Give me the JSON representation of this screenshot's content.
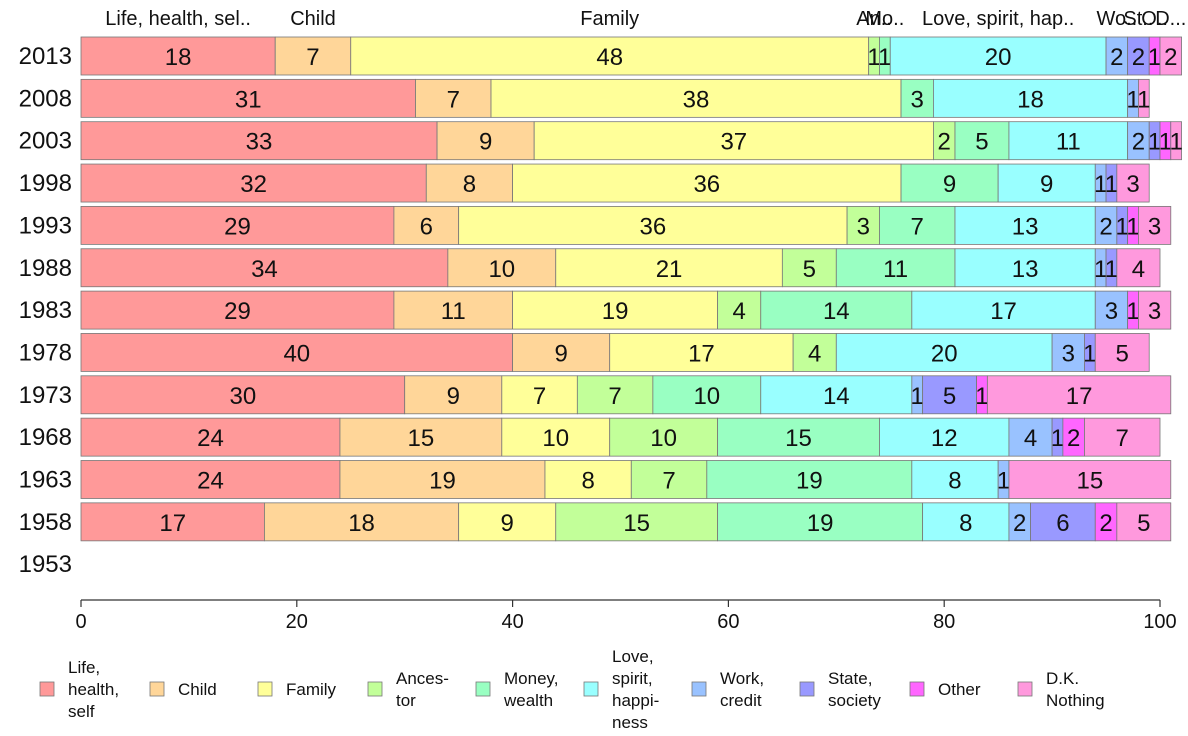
{
  "chart_data": {
    "type": "bar",
    "orientation": "horizontal",
    "stacked": true,
    "categories": [
      "2013",
      "2008",
      "2003",
      "1998",
      "1993",
      "1988",
      "1983",
      "1978",
      "1973",
      "1968",
      "1963",
      "1958",
      "1953"
    ],
    "series": [
      {
        "name": "Life, health, self",
        "color": "#ff9999",
        "values": [
          18,
          31,
          33,
          32,
          29,
          34,
          29,
          40,
          30,
          24,
          24,
          17,
          null
        ]
      },
      {
        "name": "Child",
        "color": "#ffd699",
        "values": [
          7,
          7,
          9,
          8,
          6,
          10,
          11,
          9,
          9,
          15,
          19,
          18,
          null
        ]
      },
      {
        "name": "Family",
        "color": "#ffff99",
        "values": [
          48,
          38,
          37,
          36,
          36,
          21,
          19,
          17,
          7,
          10,
          8,
          9,
          null
        ]
      },
      {
        "name": "Ancestor",
        "color": "#c2ff99",
        "values": [
          1,
          0,
          2,
          0,
          3,
          5,
          4,
          4,
          7,
          10,
          7,
          15,
          null
        ]
      },
      {
        "name": "Money, wealth",
        "color": "#99ffc2",
        "values": [
          1,
          3,
          5,
          9,
          7,
          11,
          14,
          0,
          10,
          15,
          19,
          19,
          null
        ]
      },
      {
        "name": "Love, spirit, happiness",
        "color": "#99ffff",
        "values": [
          20,
          18,
          11,
          9,
          13,
          13,
          17,
          20,
          14,
          12,
          8,
          8,
          null
        ]
      },
      {
        "name": "Work, credit",
        "color": "#99c2ff",
        "values": [
          2,
          1,
          2,
          1,
          2,
          1,
          3,
          3,
          1,
          4,
          1,
          2,
          null
        ]
      },
      {
        "name": "State, society",
        "color": "#9999ff",
        "values": [
          2,
          0,
          1,
          1,
          1,
          1,
          0,
          1,
          5,
          1,
          0,
          6,
          null
        ]
      },
      {
        "name": "Other",
        "color": "#ff66ff",
        "values": [
          1,
          0,
          1,
          0,
          1,
          0,
          1,
          0,
          1,
          2,
          0,
          2,
          null
        ]
      },
      {
        "name": "D.K. Nothing",
        "color": "#ff99dd",
        "values": [
          2,
          1,
          1,
          3,
          3,
          4,
          3,
          5,
          17,
          7,
          15,
          5,
          null
        ]
      }
    ],
    "top_labels": [
      "Life, health, sel..",
      "Child",
      "Family",
      "An..",
      "Mo..",
      "Love, spirit, hap..",
      "Wo..",
      "St..",
      "O..",
      "D..."
    ],
    "legend_labels": [
      [
        "Life,",
        "health,",
        "self"
      ],
      [
        "Child"
      ],
      [
        "Family"
      ],
      [
        "Ances-",
        "tor"
      ],
      [
        "Money,",
        "wealth"
      ],
      [
        "Love,",
        "spirit,",
        "happi-",
        "ness"
      ],
      [
        "Work,",
        "credit"
      ],
      [
        "State,",
        "society"
      ],
      [
        "Other"
      ],
      [
        "D.K.",
        "Nothing"
      ]
    ],
    "xlim": [
      0,
      100
    ],
    "x_ticks": [
      0,
      20,
      40,
      60,
      80,
      100
    ],
    "legend_position": "bottom",
    "grid": false
  }
}
